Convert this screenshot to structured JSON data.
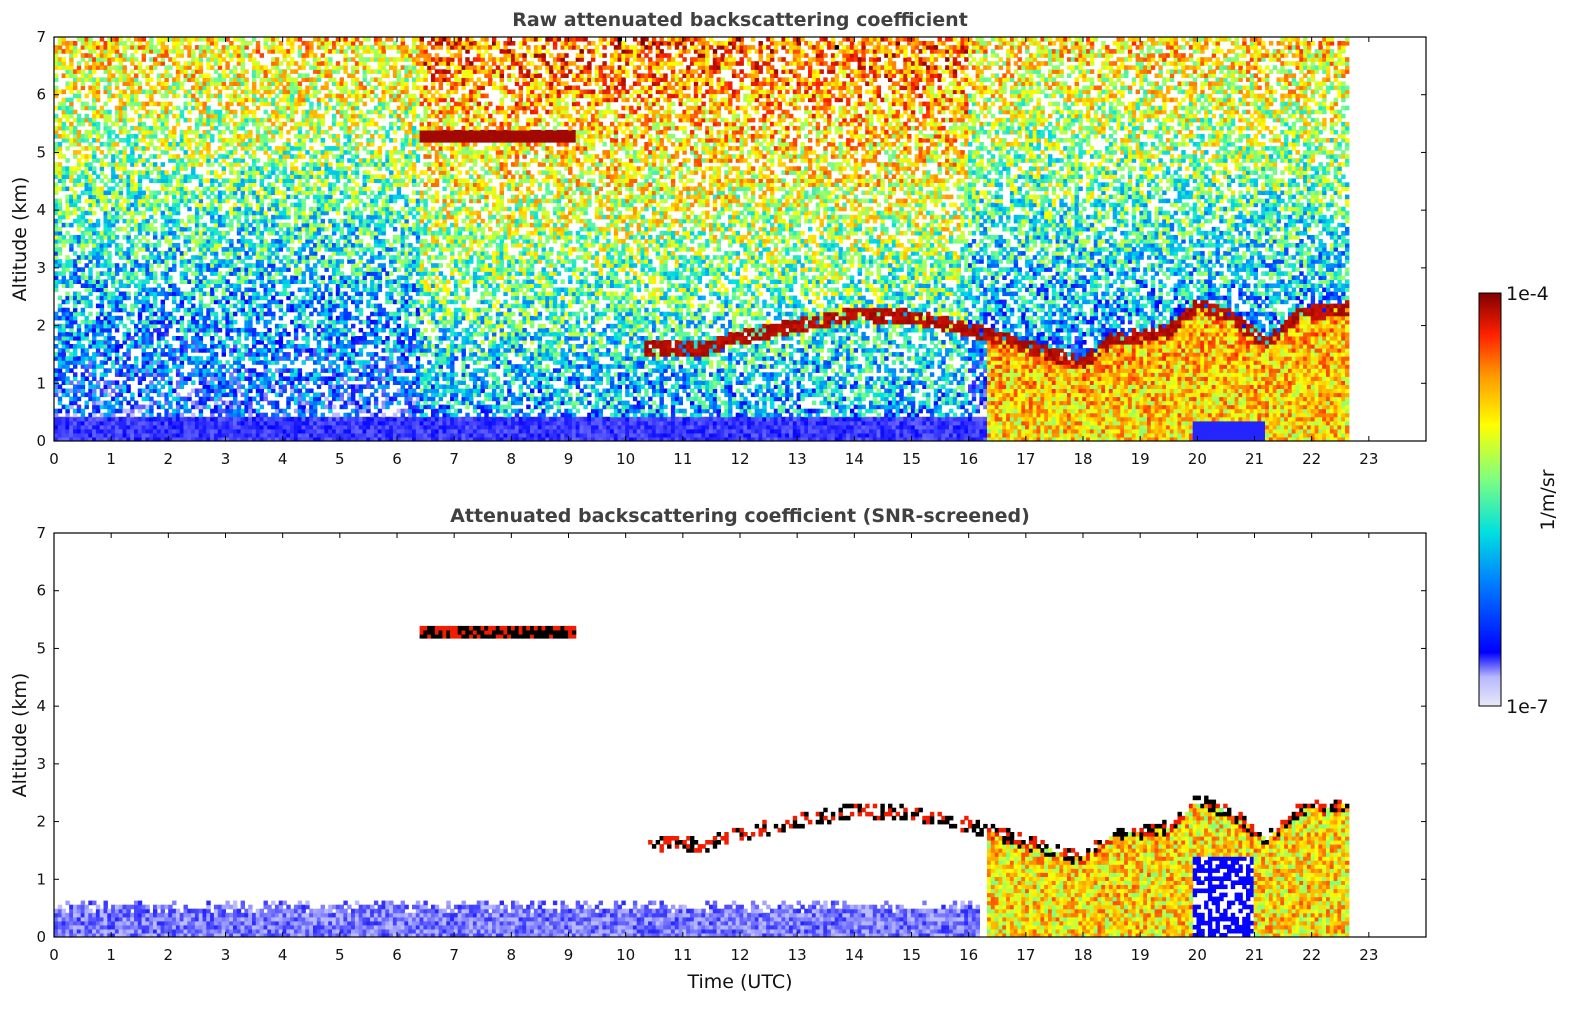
{
  "colors": {
    "scale": [
      "#e8e8f8",
      "#b8b8ff",
      "#0000ff",
      "#0080ff",
      "#00e0e0",
      "#7fff7f",
      "#ffff00",
      "#ff9900",
      "#ff2000",
      "#800000"
    ],
    "screened_cloud_edge": "#000000"
  },
  "chart_data": [
    {
      "type": "heatmap",
      "title": "Raw attenuated backscattering coefficient",
      "xlabel": "",
      "ylabel": "Altitude (km)",
      "xlim": [
        0,
        24
      ],
      "ylim": [
        0,
        7
      ],
      "xticks": [
        0,
        1,
        2,
        3,
        4,
        5,
        6,
        7,
        8,
        9,
        10,
        11,
        12,
        13,
        14,
        15,
        16,
        17,
        18,
        19,
        20,
        21,
        22,
        23
      ],
      "yticks": [
        0,
        1,
        2,
        3,
        4,
        5,
        6,
        7
      ],
      "data_end_time": 22.65,
      "features": [
        {
          "kind": "cirrus",
          "start": 6.4,
          "end": 9.1,
          "altitude": 5.3
        },
        {
          "kind": "aerosol-layer-top",
          "points": [
            [
              10.3,
              1.6
            ],
            [
              11.4,
              1.6
            ],
            [
              12.0,
              1.8
            ],
            [
              13.0,
              2.0
            ],
            [
              14.0,
              2.2
            ],
            [
              15.0,
              2.15
            ],
            [
              16.0,
              1.95
            ],
            [
              17.0,
              1.65
            ],
            [
              18.0,
              1.35
            ],
            [
              18.5,
              1.75
            ],
            [
              19.5,
              1.9
            ],
            [
              20.0,
              2.35
            ],
            [
              20.5,
              2.2
            ],
            [
              21.2,
              1.7
            ],
            [
              21.8,
              2.2
            ],
            [
              22.6,
              2.3
            ]
          ]
        },
        {
          "kind": "boundary-layer",
          "start": 16.3,
          "end": 22.65
        }
      ]
    },
    {
      "type": "heatmap",
      "title": "Attenuated backscattering coefficient (SNR-screened)",
      "xlabel": "Time (UTC)",
      "ylabel": "Altitude (km)",
      "xlim": [
        0,
        24
      ],
      "ylim": [
        0,
        7
      ],
      "xticks": [
        0,
        1,
        2,
        3,
        4,
        5,
        6,
        7,
        8,
        9,
        10,
        11,
        12,
        13,
        14,
        15,
        16,
        17,
        18,
        19,
        20,
        21,
        22,
        23
      ],
      "yticks": [
        0,
        1,
        2,
        3,
        4,
        5,
        6,
        7
      ],
      "data_end_time": 22.65,
      "features": [
        {
          "kind": "cirrus",
          "start": 6.4,
          "end": 9.1,
          "altitude": 5.3
        },
        {
          "kind": "near-surface-signal",
          "top_altitude": 0.6,
          "start": 0,
          "end": 16.2
        },
        {
          "kind": "aerosol-layer-top",
          "points": [
            [
              10.3,
              1.6
            ],
            [
              11.4,
              1.6
            ],
            [
              12.0,
              1.8
            ],
            [
              13.0,
              2.0
            ],
            [
              14.0,
              2.2
            ],
            [
              15.0,
              2.15
            ],
            [
              16.0,
              1.95
            ],
            [
              17.0,
              1.65
            ],
            [
              18.0,
              1.35
            ],
            [
              18.5,
              1.75
            ],
            [
              19.5,
              1.9
            ],
            [
              20.0,
              2.35
            ],
            [
              20.5,
              2.2
            ],
            [
              21.2,
              1.7
            ],
            [
              21.8,
              2.2
            ],
            [
              22.6,
              2.3
            ]
          ]
        },
        {
          "kind": "boundary-layer",
          "start": 16.3,
          "end": 22.65
        }
      ]
    }
  ],
  "colorbar": {
    "max_label": "1e-4",
    "min_label": "1e-7",
    "unit_label": "1/m/sr",
    "range": [
      1e-07,
      0.0001
    ],
    "scale": "log"
  }
}
